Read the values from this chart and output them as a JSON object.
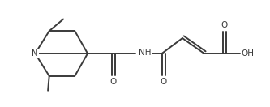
{
  "bg_color": "#ffffff",
  "line_color": "#3a3a3a",
  "text_color": "#3a3a3a",
  "line_width": 1.4,
  "font_size": 7.5,
  "figsize": [
    3.33,
    1.32
  ],
  "dpi": 100,
  "xlim": [
    0,
    10.5
  ],
  "ylim": [
    0.5,
    4.5
  ]
}
